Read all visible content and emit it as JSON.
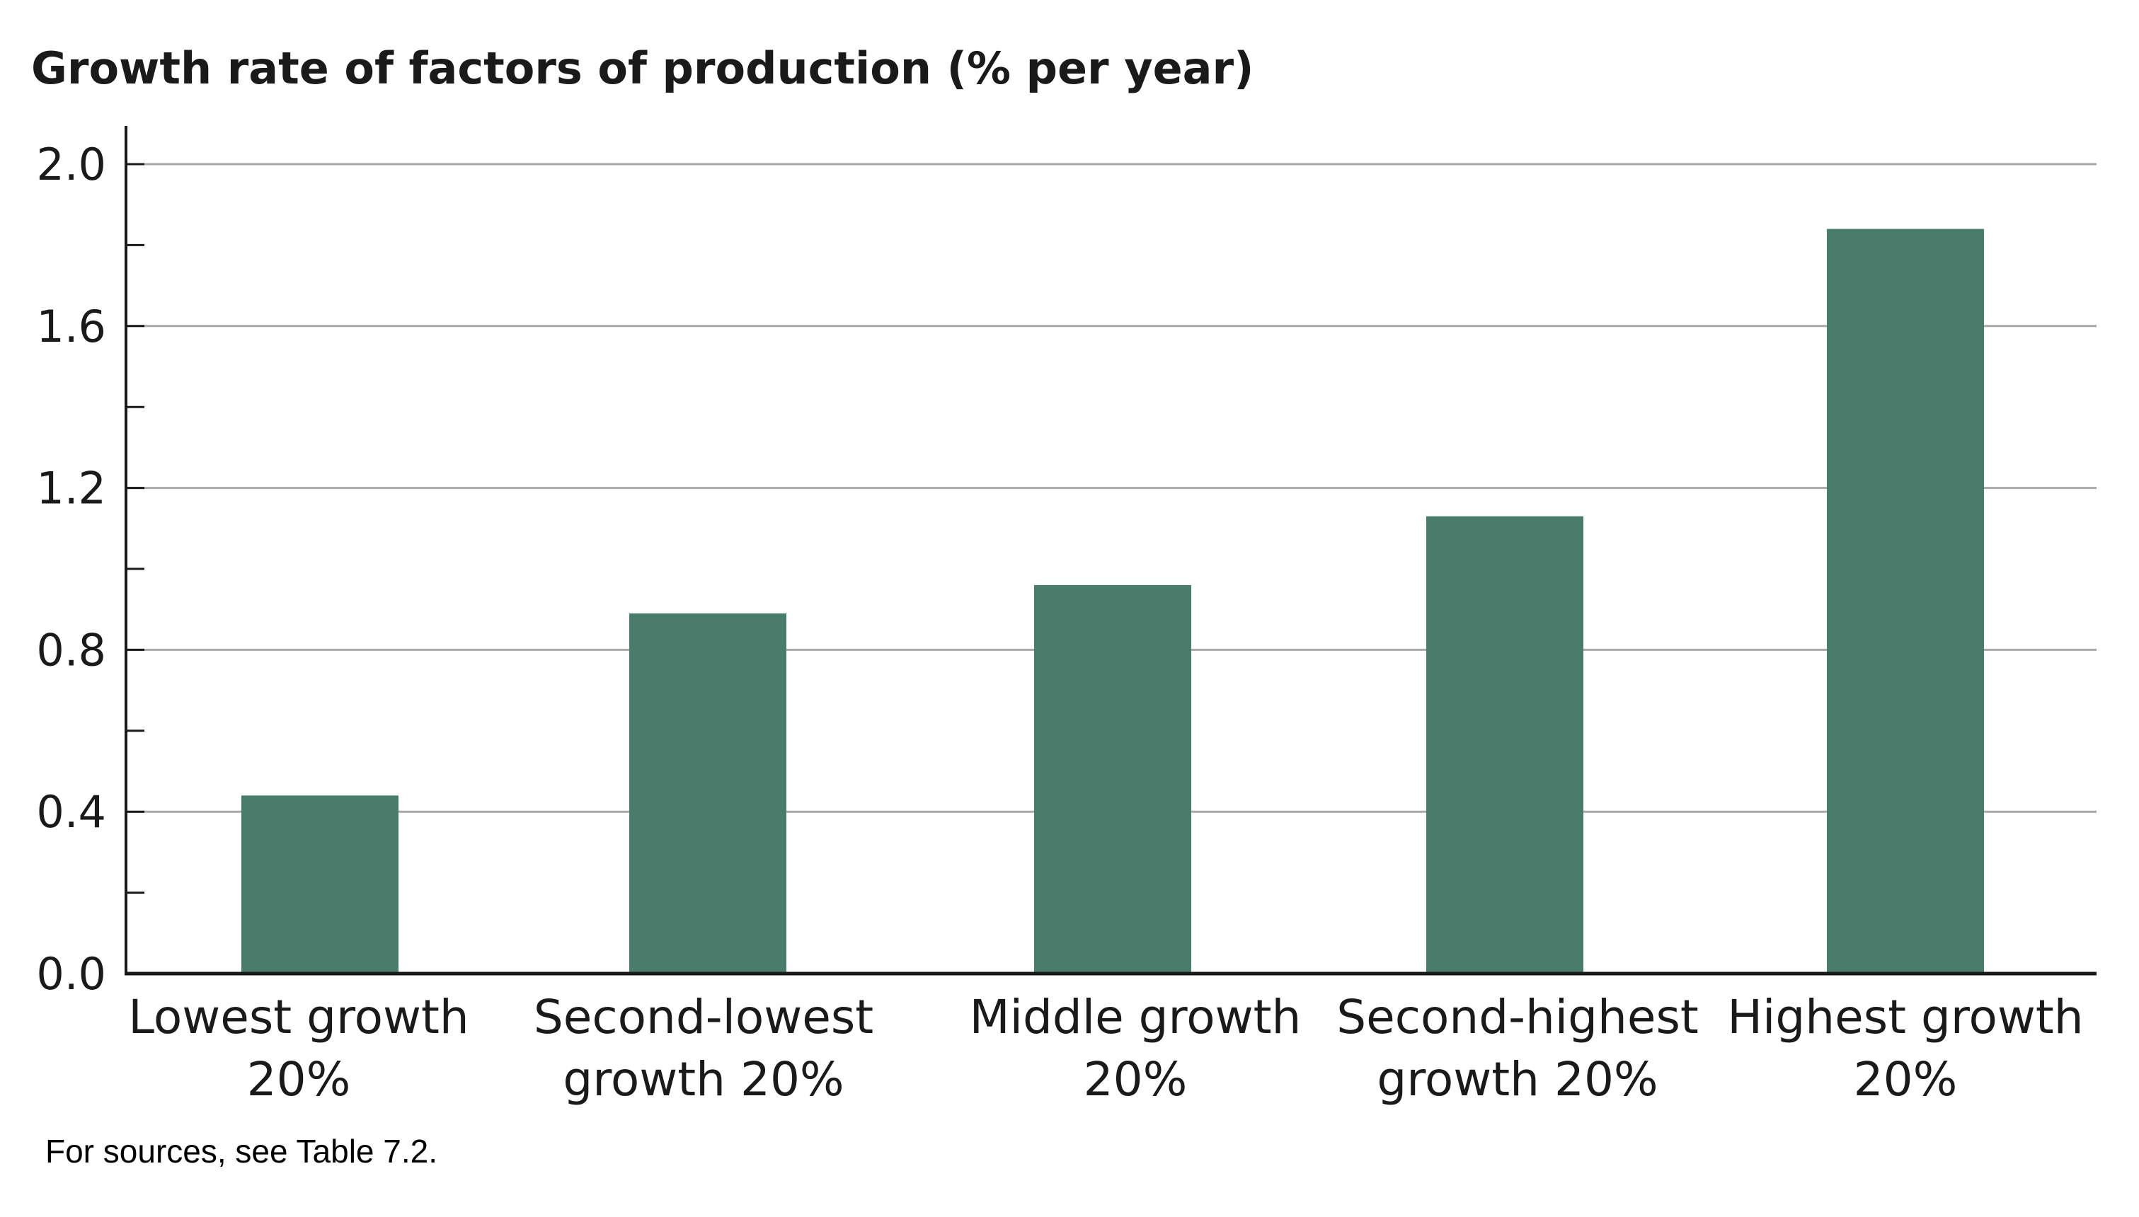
{
  "chart_data": {
    "type": "bar",
    "title": "Growth rate of factors of production (% per year)",
    "xlabel": "",
    "ylabel": "",
    "categories": [
      [
        "Lowest growth",
        "20%"
      ],
      [
        "Second-lowest",
        "growth 20%"
      ],
      [
        "Middle growth",
        "20%"
      ],
      [
        "Second-highest",
        "growth 20%"
      ],
      [
        "Highest growth",
        "20%"
      ]
    ],
    "values": [
      0.44,
      0.89,
      0.96,
      1.13,
      1.84
    ],
    "ylim": [
      0,
      2.0
    ],
    "yticks": [
      "0.0",
      "0.4",
      "0.8",
      "1.2",
      "1.6",
      "2.0"
    ],
    "grid": true,
    "legend": "none",
    "bar_color": "#497c6a",
    "grid_color": "#a8a8a8",
    "axis_color": "#1a1a1a"
  },
  "note": "For sources, see Table 7.2."
}
